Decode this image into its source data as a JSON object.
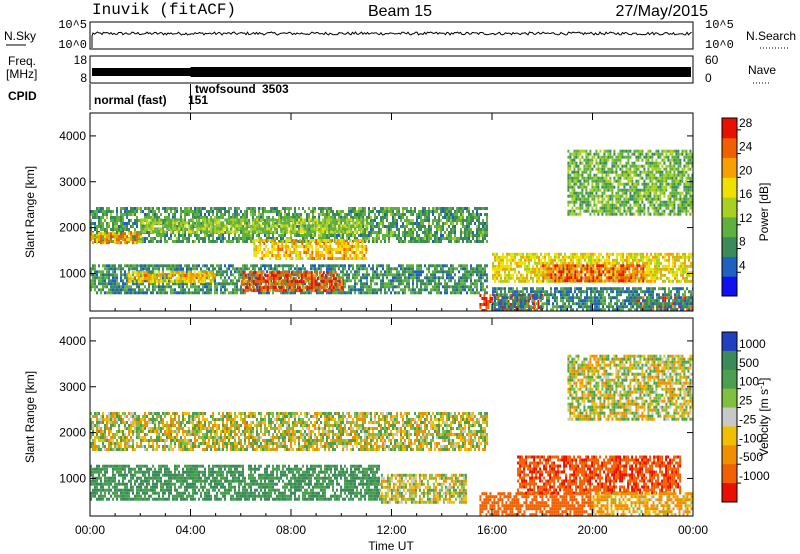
{
  "header": {
    "station": "Inuvik (fitACF)",
    "beam": "Beam 15",
    "date": "27/May/2015"
  },
  "aux_panels": {
    "nsky": {
      "label": "N.Sky",
      "right_label": "N.Search",
      "left_ticks": [
        "10^5",
        "10^0"
      ],
      "right_ticks": [
        "10^5",
        "10^0"
      ]
    },
    "freq": {
      "label_line1": "Freq.",
      "label_line2": "[MHz]",
      "right_label": "Nave",
      "left_ticks": [
        "18",
        "8"
      ],
      "right_ticks": [
        "60",
        "0"
      ]
    },
    "cpid": {
      "label": "CPID",
      "programs": [
        {
          "name": "normal (fast)",
          "id": "151",
          "start_hour": 0
        },
        {
          "name": "twofsound",
          "id": "3503",
          "start_hour": 4
        }
      ]
    }
  },
  "chart_data": [
    {
      "type": "heatmap",
      "name": "power",
      "ylabel": "Slant Range [km]",
      "xlabel": "",
      "y_ticks": [
        "1000",
        "2000",
        "3000",
        "4000"
      ],
      "ylim": [
        180,
        4500
      ],
      "xlim_hours": [
        0,
        24
      ],
      "colorbar": {
        "label": "Power [dB]",
        "ticks": [
          "4",
          "8",
          "12",
          "16",
          "20",
          "24",
          "28"
        ],
        "range": [
          0,
          30
        ],
        "colors": [
          "#1010f0",
          "#2060c0",
          "#3a8a5a",
          "#60b040",
          "#a8d020",
          "#f0e000",
          "#f8a000",
          "#f06000",
          "#e81000"
        ]
      },
      "echo_regions": [
        {
          "t0": 0.0,
          "t1": 15.8,
          "r0": 1700,
          "r1": 2450,
          "power": 10
        },
        {
          "t0": 0.0,
          "t1": 2.0,
          "r0": 1650,
          "r1": 1900,
          "power": 22
        },
        {
          "t0": 2.0,
          "t1": 11.0,
          "r0": 1900,
          "r1": 2200,
          "power": 14
        },
        {
          "t0": 6.5,
          "t1": 11.0,
          "r0": 1350,
          "r1": 1750,
          "power": 20
        },
        {
          "t0": 0.0,
          "t1": 15.8,
          "r0": 550,
          "r1": 1200,
          "power": 9
        },
        {
          "t0": 6.0,
          "t1": 10.0,
          "r0": 650,
          "r1": 1050,
          "power": 26
        },
        {
          "t0": 1.5,
          "t1": 5.0,
          "r0": 800,
          "r1": 1050,
          "power": 20
        },
        {
          "t0": 15.5,
          "t1": 18.0,
          "r0": 180,
          "r1": 550,
          "power": 27
        },
        {
          "t0": 16.0,
          "t1": 24.0,
          "r0": 800,
          "r1": 1450,
          "power": 18
        },
        {
          "t0": 18.0,
          "t1": 22.0,
          "r0": 850,
          "r1": 1200,
          "power": 25
        },
        {
          "t0": 21.5,
          "t1": 24.0,
          "r0": 180,
          "r1": 500,
          "power": 26
        },
        {
          "t0": 16.0,
          "t1": 24.0,
          "r0": 180,
          "r1": 700,
          "power": 8
        },
        {
          "t0": 19.0,
          "t1": 24.0,
          "r0": 2300,
          "r1": 3700,
          "power": 12
        }
      ]
    },
    {
      "type": "heatmap",
      "name": "velocity",
      "ylabel": "Slant Range [km]",
      "xlabel": "Time UT",
      "y_ticks": [
        "1000",
        "2000",
        "3000",
        "4000"
      ],
      "ylim": [
        180,
        4500
      ],
      "x_ticks": [
        "00:00",
        "04:00",
        "08:00",
        "12:00",
        "16:00",
        "20:00",
        "00:00"
      ],
      "xlim_hours": [
        0,
        24
      ],
      "colorbar": {
        "label": "Velocity [m s",
        "label_sup": "-1",
        "label_end": "]",
        "ticks": [
          "1000",
          "500",
          "100",
          "25",
          "-25",
          "-100",
          "-500",
          "-1000"
        ],
        "colors": [
          "#2040c0",
          "#3a8a5a",
          "#4aa050",
          "#80c040",
          "#c8c8c8",
          "#f0c000",
          "#f09000",
          "#f06000",
          "#e81000"
        ]
      },
      "echo_regions": [
        {
          "t0": 0.0,
          "t1": 15.8,
          "r0": 1650,
          "r1": 2450,
          "velocity": 0
        },
        {
          "t0": 0.0,
          "t1": 11.5,
          "r0": 550,
          "r1": 1300,
          "velocity": 300
        },
        {
          "t0": 11.5,
          "t1": 15.0,
          "r0": 500,
          "r1": 1100,
          "velocity": 0
        },
        {
          "t0": 15.5,
          "t1": 20.0,
          "r0": 180,
          "r1": 700,
          "velocity": -500
        },
        {
          "t0": 17.0,
          "t1": 23.5,
          "r0": 700,
          "r1": 1500,
          "velocity": -700
        },
        {
          "t0": 20.0,
          "t1": 24.0,
          "r0": 180,
          "r1": 700,
          "velocity": -100
        },
        {
          "t0": 19.0,
          "t1": 24.0,
          "r0": 2300,
          "r1": 3700,
          "velocity": 0
        }
      ]
    }
  ]
}
